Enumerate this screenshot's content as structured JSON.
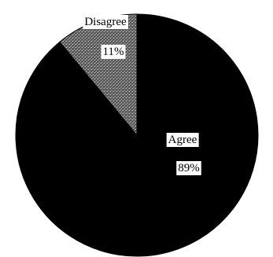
{
  "chart_data": {
    "type": "pie",
    "slices": [
      {
        "label": "Disagree",
        "value": 11,
        "value_label": "11%",
        "color": "#7a7a7a",
        "pattern": "stipple"
      },
      {
        "label": "Agree",
        "value": 89,
        "value_label": "89%",
        "color": "#000000",
        "pattern": "solid"
      }
    ],
    "start_angle_deg": 0,
    "direction": "counterclockwise",
    "border_color": "#000000",
    "title": "",
    "legend": "none"
  }
}
